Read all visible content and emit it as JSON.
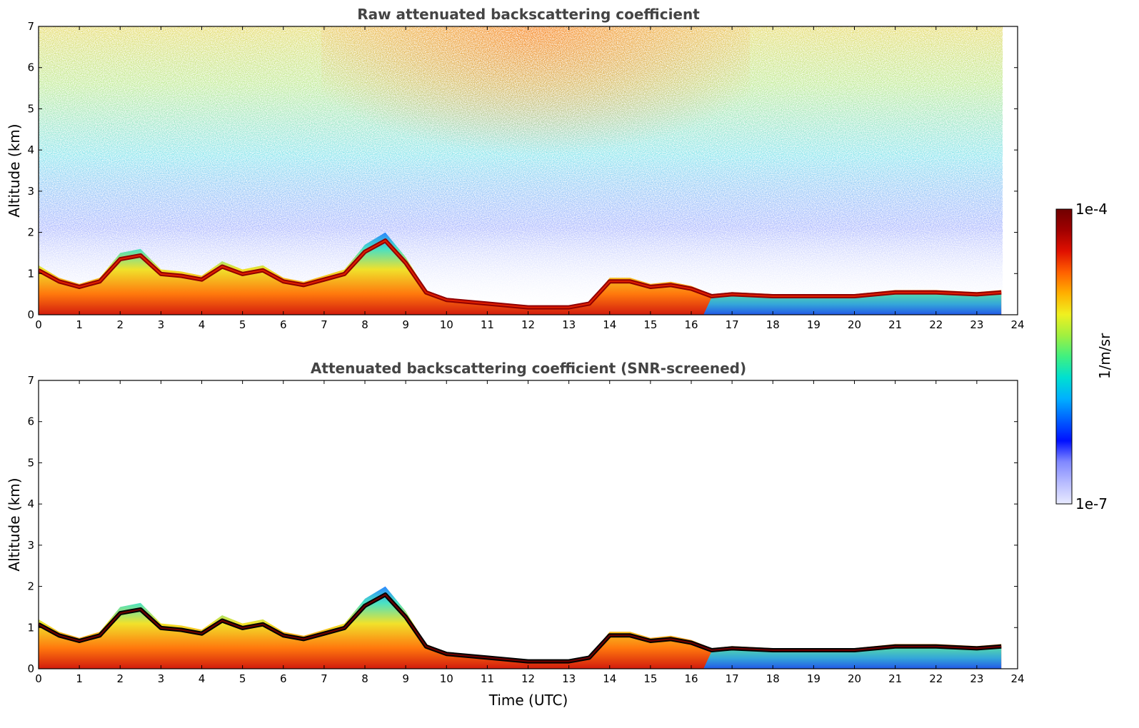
{
  "chart_data": [
    {
      "type": "heatmap",
      "title": "Raw attenuated backscattering coefficient",
      "xlabel": "",
      "ylabel": "Altitude (km)",
      "xlim": [
        0,
        24
      ],
      "ylim": [
        0,
        7
      ],
      "xticks": [
        0,
        1,
        2,
        3,
        4,
        5,
        6,
        7,
        8,
        9,
        10,
        11,
        12,
        13,
        14,
        15,
        16,
        17,
        18,
        19,
        20,
        21,
        22,
        23,
        24
      ],
      "yticks": [
        0,
        1,
        2,
        3,
        4,
        5,
        6,
        7
      ],
      "data_end_time": 23.6,
      "cloud_layer": {
        "time": [
          0,
          0.5,
          1,
          1.5,
          2,
          2.5,
          3,
          3.5,
          4,
          4.5,
          5,
          5.5,
          6,
          6.5,
          7,
          7.5,
          8,
          8.5,
          9,
          9.5,
          10,
          11,
          12,
          13,
          13.5,
          14,
          14.5,
          15,
          15.5,
          16,
          16.5,
          17,
          18,
          19,
          20,
          21,
          22,
          23,
          23.6
        ],
        "top_km": [
          1.2,
          0.9,
          0.75,
          0.9,
          1.5,
          1.6,
          1.1,
          1.05,
          0.95,
          1.3,
          1.1,
          1.2,
          0.9,
          0.8,
          0.95,
          1.1,
          1.7,
          2.0,
          1.4,
          0.6,
          0.4,
          0.3,
          0.2,
          0.2,
          0.3,
          0.9,
          0.9,
          0.75,
          0.8,
          0.7,
          0.5,
          0.55,
          0.5,
          0.5,
          0.5,
          0.6,
          0.6,
          0.55,
          0.6
        ]
      },
      "panel": "raw"
    },
    {
      "type": "heatmap",
      "title": "Attenuated backscattering coefficient (SNR-screened)",
      "xlabel": "Time (UTC)",
      "ylabel": "Altitude (km)",
      "xlim": [
        0,
        24
      ],
      "ylim": [
        0,
        7
      ],
      "xticks": [
        0,
        1,
        2,
        3,
        4,
        5,
        6,
        7,
        8,
        9,
        10,
        11,
        12,
        13,
        14,
        15,
        16,
        17,
        18,
        19,
        20,
        21,
        22,
        23,
        24
      ],
      "yticks": [
        0,
        1,
        2,
        3,
        4,
        5,
        6,
        7
      ],
      "data_end_time": 23.6,
      "cloud_layer": {
        "time": [
          0,
          0.5,
          1,
          1.5,
          2,
          2.5,
          3,
          3.5,
          4,
          4.5,
          5,
          5.5,
          6,
          6.5,
          7,
          7.5,
          8,
          8.5,
          9,
          9.5,
          10,
          11,
          12,
          13,
          13.5,
          14,
          14.5,
          15,
          15.5,
          16,
          16.5,
          17,
          18,
          19,
          20,
          21,
          22,
          23,
          23.6
        ],
        "top_km": [
          1.2,
          0.9,
          0.75,
          0.9,
          1.5,
          1.6,
          1.1,
          1.05,
          0.95,
          1.3,
          1.1,
          1.2,
          0.9,
          0.8,
          0.95,
          1.1,
          1.7,
          2.0,
          1.4,
          0.6,
          0.4,
          0.3,
          0.2,
          0.2,
          0.3,
          0.9,
          0.9,
          0.75,
          0.8,
          0.7,
          0.5,
          0.55,
          0.5,
          0.5,
          0.5,
          0.6,
          0.6,
          0.55,
          0.6
        ]
      },
      "panel": "screened"
    }
  ],
  "colorbar": {
    "label": "1/m/sr",
    "max_label": "1e-4",
    "min_label": "1e-7",
    "scale": "log",
    "colors": [
      "#e8eaff",
      "#b8bcff",
      "#8088ff",
      "#0010ff",
      "#0060ff",
      "#00b0ff",
      "#00e0d0",
      "#40f080",
      "#a0f040",
      "#f0f020",
      "#ffb000",
      "#ff6000",
      "#e01000",
      "#a00000",
      "#700000"
    ]
  }
}
